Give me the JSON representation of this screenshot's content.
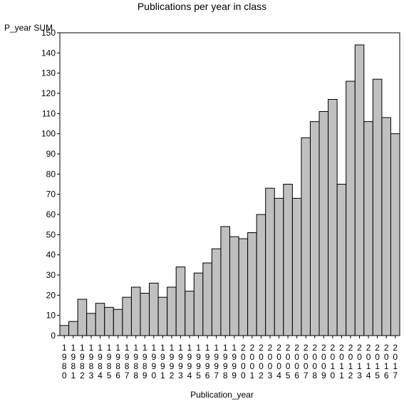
{
  "chart_data": {
    "type": "bar",
    "title": "Publications per year in class",
    "ylabel": "P_year SUM",
    "xlabel": "Publication_year",
    "ylim": [
      0,
      150
    ],
    "yticks": [
      0,
      10,
      20,
      30,
      40,
      50,
      60,
      70,
      80,
      90,
      100,
      110,
      120,
      130,
      140,
      150
    ],
    "grid": false,
    "bar_color": "#c0c0c0",
    "categories": [
      "1980",
      "1981",
      "1982",
      "1983",
      "1984",
      "1985",
      "1986",
      "1987",
      "1988",
      "1989",
      "1990",
      "1991",
      "1992",
      "1993",
      "1994",
      "1995",
      "1996",
      "1997",
      "1998",
      "1999",
      "2000",
      "2001",
      "2002",
      "2003",
      "2004",
      "2005",
      "2006",
      "2007",
      "2008",
      "2009",
      "2010",
      "2011",
      "2012",
      "2013",
      "2014",
      "2015",
      "2016",
      "2017"
    ],
    "values": [
      5,
      7,
      18,
      11,
      16,
      14,
      13,
      19,
      24,
      21,
      26,
      19,
      24,
      34,
      22,
      31,
      36,
      43,
      54,
      49,
      48,
      51,
      60,
      73,
      68,
      75,
      68,
      98,
      106,
      111,
      117,
      75,
      126,
      144,
      106,
      127,
      108,
      100
    ]
  }
}
